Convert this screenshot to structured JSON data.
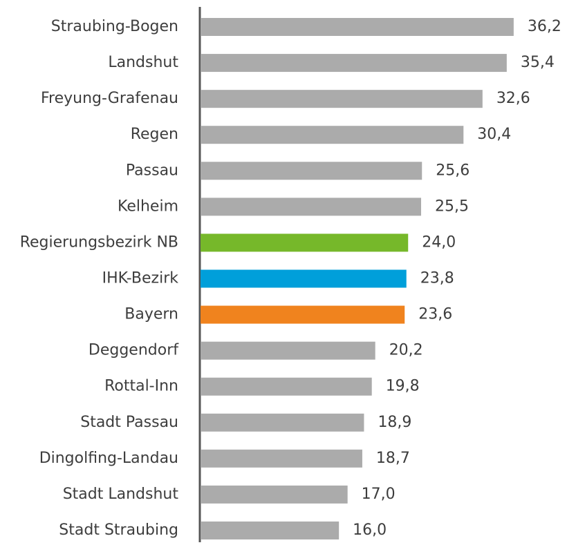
{
  "chart_data": {
    "type": "bar",
    "orientation": "horizontal",
    "categories": [
      "Straubing-Bogen",
      "Landshut",
      "Freyung-Grafenau",
      "Regen",
      "Passau",
      "Kelheim",
      "Regierungsbezirk NB",
      "IHK-Bezirk",
      "Bayern",
      "Deggendorf",
      "Rottal-Inn",
      "Stadt Passau",
      "Dingolfing-Landau",
      "Stadt Landshut",
      "Stadt Straubing"
    ],
    "values": [
      36.2,
      35.4,
      32.6,
      30.4,
      25.6,
      25.5,
      24.0,
      23.8,
      23.6,
      20.2,
      19.8,
      18.9,
      18.7,
      17.0,
      16.0
    ],
    "value_labels": [
      "36,2",
      "35,4",
      "32,6",
      "30,4",
      "25,6",
      "25,5",
      "24,0",
      "23,8",
      "23,6",
      "20,2",
      "19,8",
      "18,9",
      "18,7",
      "17,0",
      "16,0"
    ],
    "colors": [
      "#ababab",
      "#ababab",
      "#ababab",
      "#ababab",
      "#ababab",
      "#ababab",
      "#76b82a",
      "#009fda",
      "#f0831e",
      "#ababab",
      "#ababab",
      "#ababab",
      "#ababab",
      "#ababab",
      "#ababab"
    ]
  }
}
